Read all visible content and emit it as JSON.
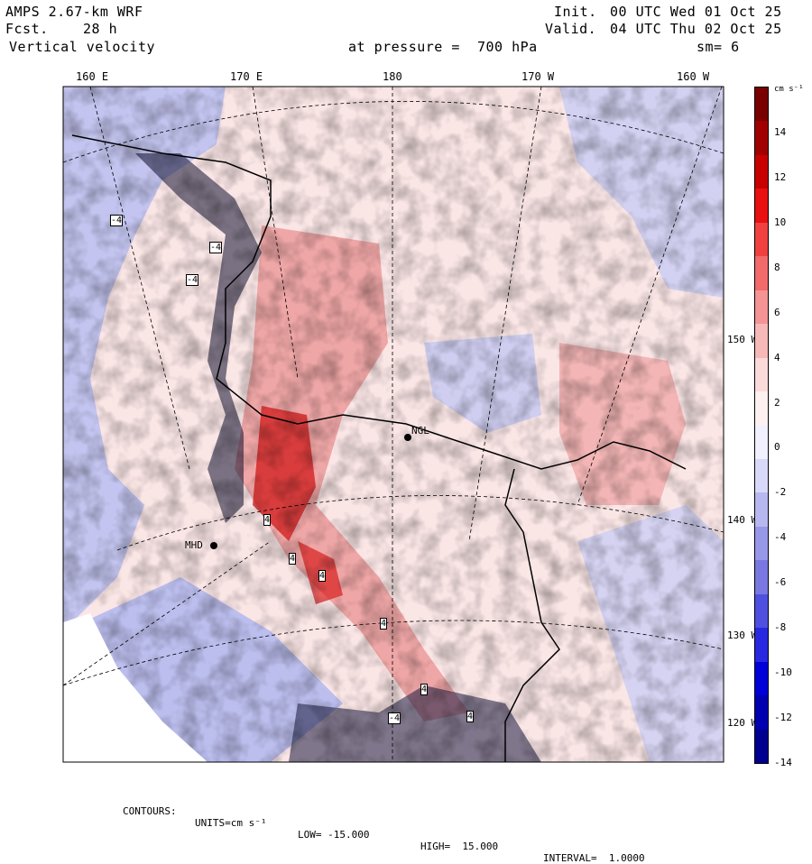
{
  "header": {
    "model": "AMPS 2.67-km WRF",
    "forecast_label": "Fcst.",
    "forecast_value": "28 h",
    "field": "Vertical velocity",
    "init_label": "Init.",
    "init_value": "00 UTC Wed 01 Oct 25",
    "valid_label": "Valid.",
    "valid_value": "04 UTC Thu 02 Oct 25",
    "pressure_text": "at pressure =  700 hPa",
    "smoothing": "sm= 6"
  },
  "top_lon_labels": [
    "160 E",
    "170 E",
    "180",
    "170 W",
    "160 W"
  ],
  "right_lat_labels": [
    "150 W",
    "140 W",
    "130 W",
    "120 W"
  ],
  "station_labels": [
    "NGL",
    "MHD"
  ],
  "contour_labels": [
    "-4",
    "-4",
    "-4",
    "-4",
    "4",
    "4",
    "4",
    "4",
    "4",
    "4"
  ],
  "colorbar": {
    "units": "cm s⁻¹",
    "ticks": [
      "14",
      "12",
      "10",
      "8",
      "6",
      "4",
      "2",
      "0",
      "-2",
      "-4",
      "-6",
      "-8",
      "-10",
      "-12",
      "-14"
    ],
    "colors": [
      "#7a0000",
      "#a00000",
      "#c80000",
      "#e81010",
      "#f04040",
      "#f26a6a",
      "#f49494",
      "#f7b8b8",
      "#fbdada",
      "#fdf0f0",
      "#f0f0ff",
      "#d8d8f8",
      "#b8b8f0",
      "#9898e8",
      "#7878e0",
      "#5050e0",
      "#2828e0",
      "#0000d8",
      "#0000b0",
      "#000090"
    ]
  },
  "footer": {
    "contours": "CONTOURS:",
    "units": "UNITS=cm s⁻¹",
    "low": "LOW= -15.000",
    "high": "HIGH=  15.000",
    "interval": "INTERVAL=  1.0000"
  }
}
